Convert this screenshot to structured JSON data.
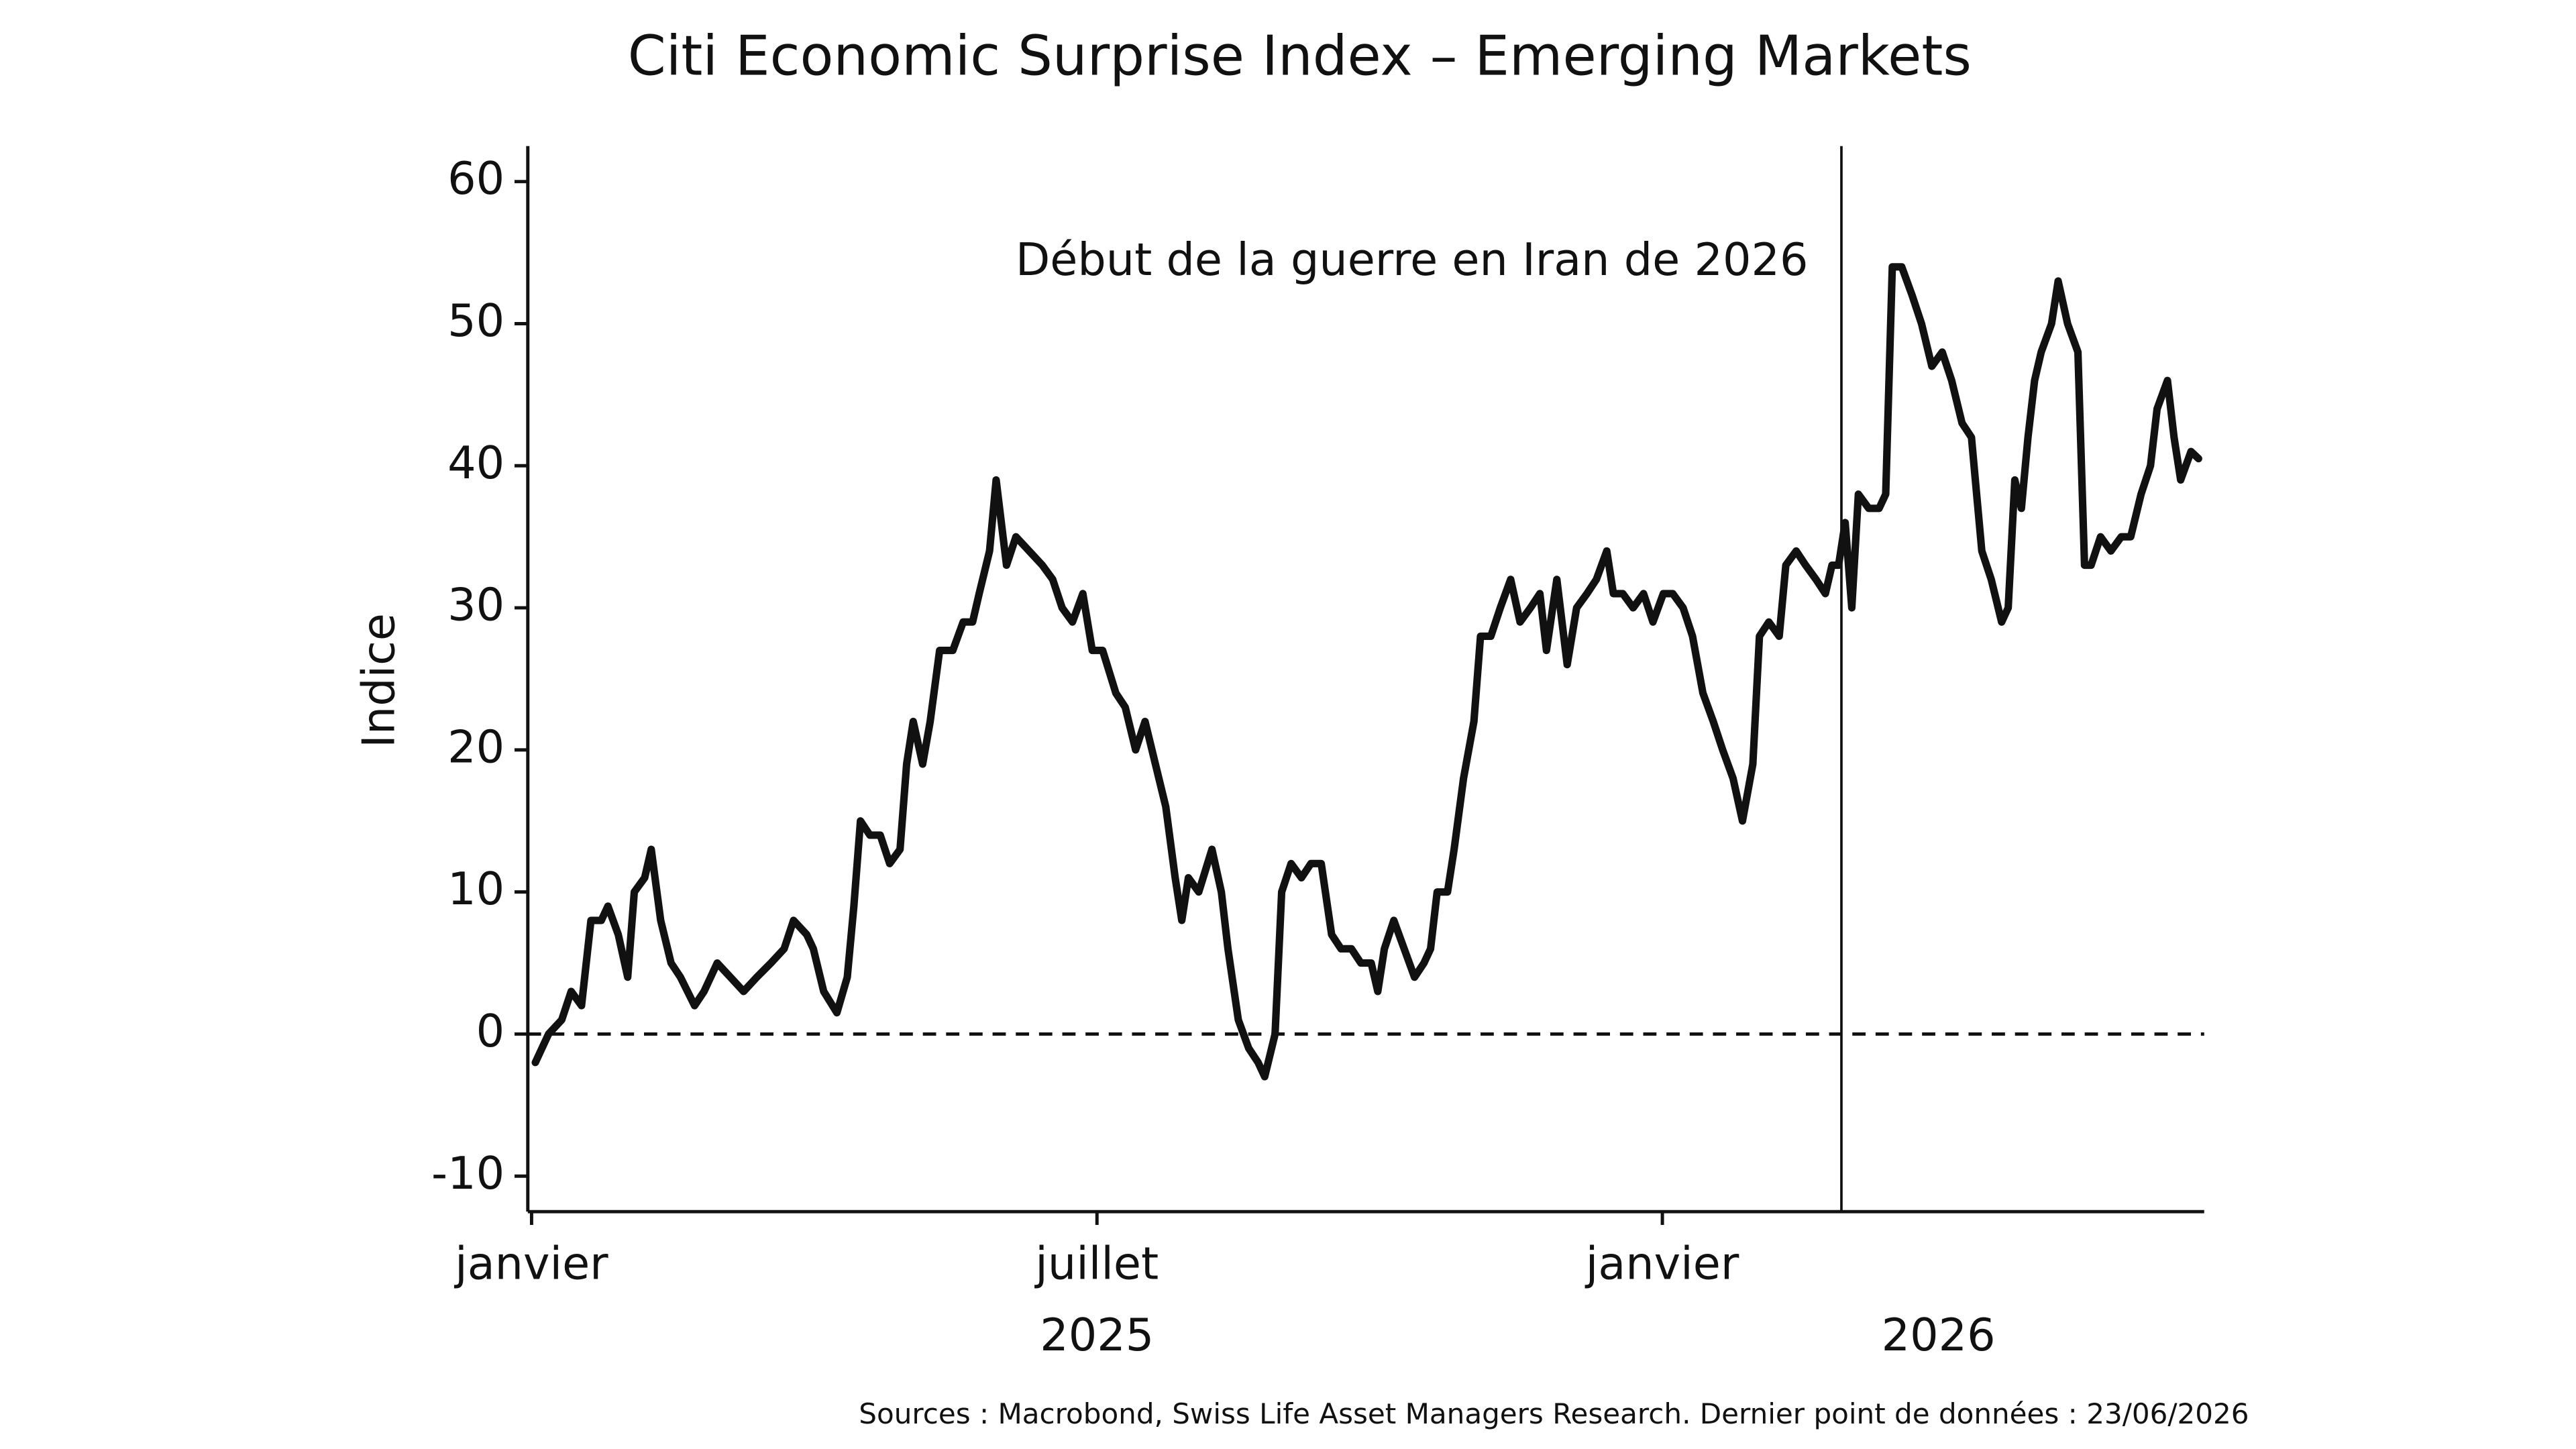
{
  "chart_data": {
    "type": "line",
    "title": "Citi Economic Surprise Index – Emerging Markets",
    "y_label": "Indice",
    "source": "Sources : Macrobond, Swiss Life Asset Managers Research. Dernier point de données : 23/06/2026",
    "annotation": {
      "text": "Début de la guerre en Iran de 2026",
      "x": 13.9
    },
    "hline": 0,
    "xlim": [
      -0.04,
      17.75
    ],
    "xticks": [
      {
        "value": 0,
        "label": "janvier"
      },
      {
        "value": 6,
        "label": "juillet"
      },
      {
        "value": 12,
        "label": "janvier"
      }
    ],
    "year_labels": [
      {
        "value": 6,
        "label": "2025"
      },
      {
        "value": 14.93,
        "label": "2026"
      }
    ],
    "ylim": [
      -12.5,
      62.5
    ],
    "yticks": [
      -10,
      0,
      10,
      20,
      30,
      40,
      50,
      60
    ],
    "x": [
      0.04,
      0.18,
      0.32,
      0.42,
      0.53,
      0.63,
      0.74,
      0.81,
      0.92,
      1.02,
      1.09,
      1.2,
      1.27,
      1.37,
      1.48,
      1.58,
      1.73,
      1.83,
      1.97,
      2.11,
      2.25,
      2.39,
      2.54,
      2.68,
      2.78,
      2.92,
      2.99,
      3.1,
      3.24,
      3.35,
      3.42,
      3.49,
      3.59,
      3.7,
      3.8,
      3.91,
      3.98,
      4.05,
      4.15,
      4.23,
      4.33,
      4.47,
      4.58,
      4.68,
      4.75,
      4.86,
      4.93,
      5.04,
      5.14,
      5.28,
      5.42,
      5.53,
      5.63,
      5.74,
      5.85,
      5.95,
      6.06,
      6.2,
      6.3,
      6.41,
      6.51,
      6.62,
      6.73,
      6.83,
      6.9,
      6.97,
      7.08,
      7.22,
      7.32,
      7.39,
      7.5,
      7.61,
      7.71,
      7.78,
      7.89,
      7.96,
      8.06,
      8.17,
      8.27,
      8.38,
      8.49,
      8.59,
      8.7,
      8.8,
      8.91,
      8.98,
      9.05,
      9.15,
      9.26,
      9.37,
      9.47,
      9.54,
      9.61,
      9.72,
      9.79,
      9.89,
      10.0,
      10.07,
      10.18,
      10.28,
      10.39,
      10.49,
      10.6,
      10.7,
      10.77,
      10.88,
      10.99,
      11.09,
      11.2,
      11.3,
      11.41,
      11.48,
      11.58,
      11.69,
      11.8,
      11.9,
      12.01,
      12.11,
      12.22,
      12.32,
      12.43,
      12.54,
      12.64,
      12.75,
      12.85,
      12.96,
      13.03,
      13.13,
      13.24,
      13.31,
      13.42,
      13.52,
      13.63,
      13.73,
      13.8,
      13.87,
      13.94,
      14.01,
      14.08,
      14.19,
      14.3,
      14.37,
      14.44,
      14.54,
      14.65,
      14.75,
      14.86,
      14.97,
      15.07,
      15.18,
      15.28,
      15.39,
      15.49,
      15.6,
      15.67,
      15.74,
      15.81,
      15.88,
      15.95,
      16.02,
      16.13,
      16.2,
      16.3,
      16.41,
      16.48,
      16.55,
      16.65,
      16.76,
      16.87,
      16.97,
      17.08,
      17.18,
      17.25,
      17.36,
      17.43,
      17.5,
      17.61,
      17.69
    ],
    "series": [
      {
        "name": "Indice",
        "color": "#111111",
        "values": [
          -2,
          0,
          1,
          3,
          2,
          8,
          8,
          9,
          7,
          4,
          10,
          11,
          13,
          8,
          5,
          4,
          2,
          3,
          5,
          4,
          3,
          4,
          5,
          6,
          8,
          7,
          6,
          3,
          1.5,
          4,
          9,
          15,
          14,
          14,
          12,
          13,
          19,
          22,
          19,
          22,
          27,
          27,
          29,
          29,
          31,
          34,
          39,
          33,
          35,
          34,
          33,
          32,
          30,
          29,
          31,
          27,
          27,
          24,
          23,
          20,
          22,
          19,
          16,
          11,
          8,
          11,
          10,
          13,
          10,
          6,
          1,
          -1,
          -2,
          -3,
          0,
          10,
          12,
          11,
          12,
          12,
          7,
          6,
          6,
          5,
          5,
          3,
          6,
          8,
          6,
          4,
          5,
          6,
          10,
          10,
          13,
          18,
          22,
          28,
          28,
          30,
          32,
          29,
          30,
          31,
          27,
          32,
          26,
          30,
          31,
          32,
          34,
          31,
          31,
          30,
          31,
          29,
          31,
          31,
          30,
          28,
          24,
          22,
          20,
          18,
          15,
          19,
          28,
          29,
          28,
          33,
          34,
          33,
          32,
          31,
          33,
          33,
          36,
          30,
          38,
          37,
          37,
          38,
          54,
          54,
          52,
          50,
          47,
          48,
          46,
          43,
          42,
          34,
          32,
          29,
          30,
          39,
          37,
          42,
          46,
          48,
          50,
          53,
          50,
          48,
          33,
          33,
          35,
          34,
          35,
          35,
          38,
          40,
          44,
          46,
          42,
          39,
          41,
          40.5
        ]
      }
    ]
  }
}
